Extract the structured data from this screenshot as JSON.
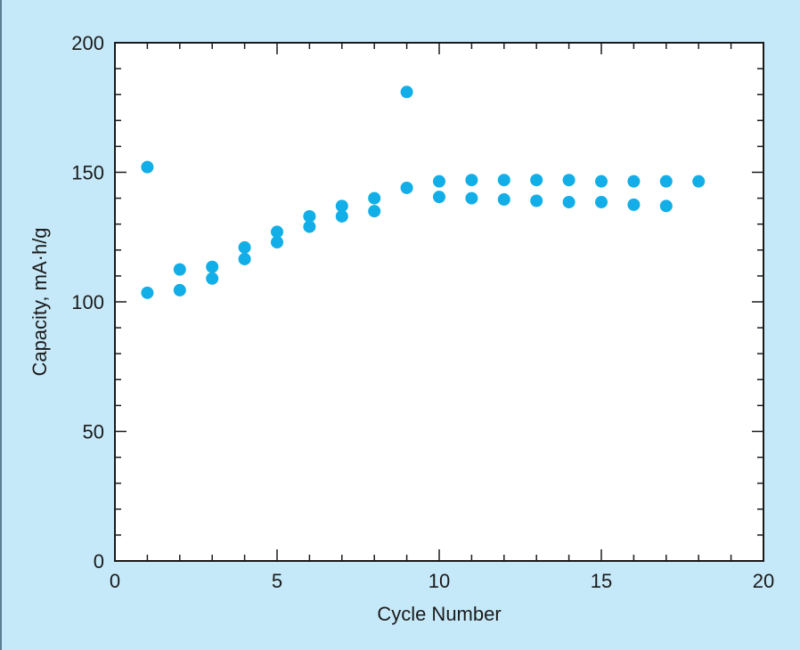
{
  "chart_data": {
    "type": "scatter",
    "title": "",
    "xlabel": "Cycle Number",
    "ylabel": "Capacity, mA·h/g",
    "xlim": [
      0,
      20
    ],
    "ylim": [
      0,
      200
    ],
    "x_ticks": [
      "0",
      "5",
      "10",
      "15",
      "20"
    ],
    "y_ticks": [
      "0",
      "50",
      "100",
      "150",
      "200"
    ],
    "x_minor_step": 1,
    "y_minor_step": 10,
    "grid": false,
    "legend": "none",
    "marker_color": "#12aee7",
    "background_color": "#c6e9f9",
    "series": [
      {
        "points": [
          [
            1,
            152
          ],
          [
            1,
            103.5
          ],
          [
            2,
            112.5
          ],
          [
            2,
            104.5
          ],
          [
            3,
            113.5
          ],
          [
            3,
            109
          ],
          [
            4,
            121
          ],
          [
            4,
            116.5
          ],
          [
            5,
            127
          ],
          [
            5,
            123
          ],
          [
            6,
            133
          ],
          [
            6,
            129
          ],
          [
            7,
            137
          ],
          [
            7,
            133
          ],
          [
            8,
            140
          ],
          [
            8,
            135
          ],
          [
            9,
            181
          ],
          [
            9,
            144
          ],
          [
            10,
            146.5
          ],
          [
            10,
            140.5
          ],
          [
            11,
            147
          ],
          [
            11,
            140
          ],
          [
            12,
            147
          ],
          [
            12,
            139.5
          ],
          [
            13,
            147
          ],
          [
            13,
            139
          ],
          [
            14,
            147
          ],
          [
            14,
            138.5
          ],
          [
            15,
            146.5
          ],
          [
            15,
            138.5
          ],
          [
            16,
            146.5
          ],
          [
            16,
            137.5
          ],
          [
            17,
            146.5
          ],
          [
            17,
            137
          ],
          [
            18,
            146.5
          ]
        ]
      }
    ]
  }
}
